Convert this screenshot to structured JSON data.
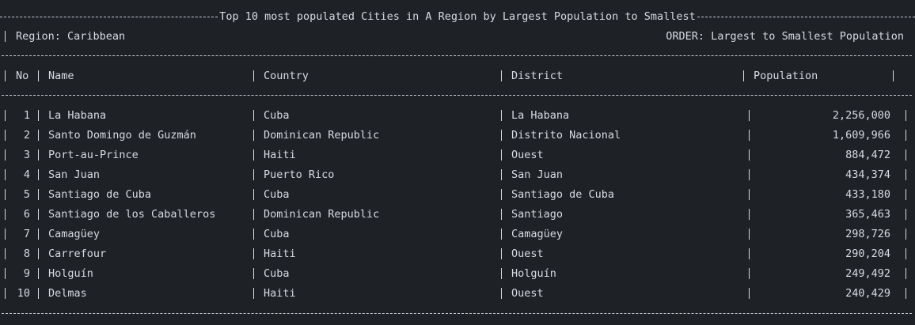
{
  "report": {
    "title": "Top 10 most populated Cities in A Region by Largest Population to Smallest",
    "region_label": "Region: Caribbean",
    "order_label": "ORDER: Largest to Smallest Population"
  },
  "table": {
    "columns": [
      "No",
      "Name",
      "Country",
      "District",
      "Population"
    ],
    "rows": [
      {
        "no": "1",
        "name": "La Habana",
        "country": "Cuba",
        "district": "La Habana",
        "population": "2,256,000"
      },
      {
        "no": "2",
        "name": "Santo Domingo de Guzmán",
        "country": "Dominican Republic",
        "district": "Distrito Nacional",
        "population": "1,609,966"
      },
      {
        "no": "3",
        "name": "Port-au-Prince",
        "country": "Haiti",
        "district": "Ouest",
        "population": "884,472"
      },
      {
        "no": "4",
        "name": "San Juan",
        "country": "Puerto Rico",
        "district": "San Juan",
        "population": "434,374"
      },
      {
        "no": "5",
        "name": "Santiago de Cuba",
        "country": "Cuba",
        "district": "Santiago de Cuba",
        "population": "433,180"
      },
      {
        "no": "6",
        "name": "Santiago de los Caballeros",
        "country": "Dominican Republic",
        "district": "Santiago",
        "population": "365,463"
      },
      {
        "no": "7",
        "name": "Camagüey",
        "country": "Cuba",
        "district": "Camagüey",
        "population": "298,726"
      },
      {
        "no": "8",
        "name": "Carrefour",
        "country": "Haiti",
        "district": "Ouest",
        "population": "290,204"
      },
      {
        "no": "9",
        "name": "Holguín",
        "country": "Cuba",
        "district": "Holguín",
        "population": "249,492"
      },
      {
        "no": "10",
        "name": "Delmas",
        "country": "Haiti",
        "district": "Ouest",
        "population": "240,429"
      }
    ]
  }
}
